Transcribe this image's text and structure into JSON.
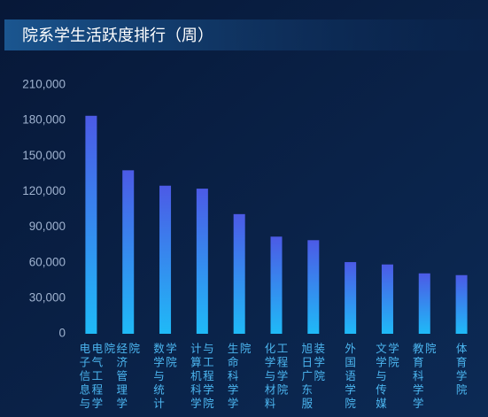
{
  "chart_data": {
    "type": "bar",
    "title": "院系学生活跃度排行（周）",
    "categories": [
      "电子信息与电气工程学院",
      "经济管理学院",
      "数学与统计学院",
      "计算机科学与工程学院",
      "生命科学学院",
      "化学与材料工程学院",
      "旭日广东服装学院",
      "外国语学院",
      "文学与传媒学院",
      "教育科学学院",
      "体育学院"
    ],
    "values": [
      184000,
      138000,
      125000,
      122500,
      101000,
      82000,
      79000,
      60500,
      58500,
      51000,
      49500
    ],
    "colors": [
      "#4c5ae6",
      "#1fbaf7"
    ],
    "ylim": [
      0,
      210000
    ],
    "yticks": [
      0,
      {
        "value": 30000,
        "label": "30,000"
      },
      {
        "value": 60000,
        "label": "60,000"
      },
      {
        "value": 90000,
        "label": "90,000"
      },
      {
        "value": 120000,
        "label": "120,000"
      },
      {
        "value": 150000,
        "label": "150,000"
      },
      {
        "value": 180000,
        "label": "180,000"
      },
      {
        "value": 210000,
        "label": "210,000"
      }
    ],
    "grid": false
  }
}
